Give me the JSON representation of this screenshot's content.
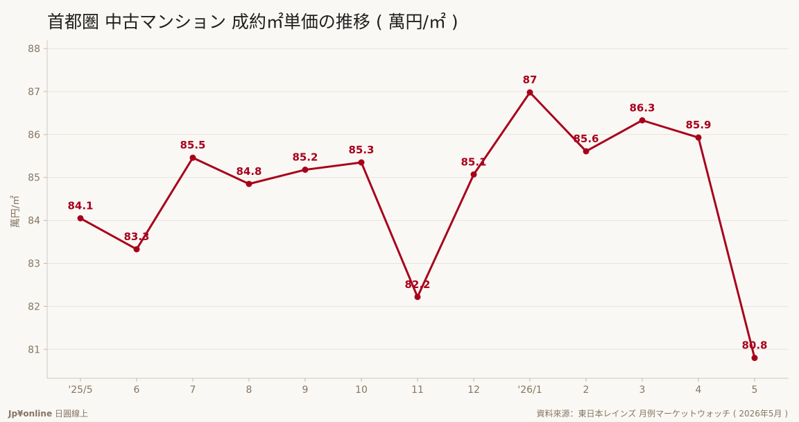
{
  "title": "首都圏 中古マンション 成約㎡単価の推移 ( 萬円/㎡ )",
  "footer": {
    "brand_name": "Jp¥online",
    "brand_suffix": "日圓線上",
    "source": "資料來源：東日本レインズ 月例マーケットウォッチ ( 2026年5月 )"
  },
  "colors": {
    "background": "#faf8f4",
    "series": "#a8001c",
    "axis_text": "#857563",
    "grid": "#e6e3dd"
  },
  "chart_data": {
    "type": "line",
    "title": "首都圏 中古マンション 成約㎡単価の推移 ( 萬円/㎡ )",
    "xlabel": "",
    "ylabel": "萬円/㎡",
    "categories": [
      "'25/5",
      "6",
      "7",
      "8",
      "9",
      "10",
      "11",
      "12",
      "'26/1",
      "2",
      "3",
      "4",
      "5"
    ],
    "series": [
      {
        "values": [
          84.05,
          83.33,
          85.46,
          84.85,
          85.18,
          85.35,
          82.22,
          85.07,
          86.98,
          85.61,
          86.33,
          85.93,
          80.8
        ],
        "labels": [
          "84.1",
          "83.3",
          "85.5",
          "84.8",
          "85.2",
          "85.3",
          "82.2",
          "85.1",
          "87",
          "85.6",
          "86.3",
          "85.9",
          "80.8"
        ]
      }
    ],
    "ylim": [
      80.4,
      88
    ],
    "yticks": [
      81,
      82,
      83,
      84,
      85,
      86,
      87,
      88
    ],
    "grid": true,
    "legend": "none"
  }
}
